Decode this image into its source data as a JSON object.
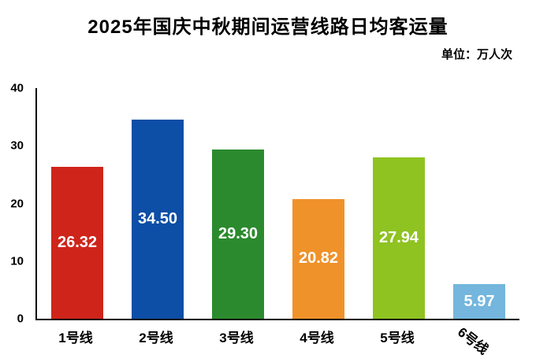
{
  "title": "2025年国庆中秋期间运营线路日均客运量",
  "unit_label": "单位：万人次",
  "chart_data": {
    "type": "bar",
    "title": "2025年国庆中秋期间运营线路日均客运量",
    "subtitle": "单位：万人次",
    "categories": [
      "1号线",
      "2号线",
      "3号线",
      "4号线",
      "5号线",
      "6号线"
    ],
    "values": [
      26.32,
      34.5,
      29.3,
      20.82,
      27.94,
      5.97
    ],
    "value_labels": [
      "26.32",
      "34.50",
      "29.30",
      "20.82",
      "27.94",
      "5.97"
    ],
    "bar_colors": [
      "#cf241a",
      "#0d4ea6",
      "#2b8a2e",
      "#f0922a",
      "#8fc321",
      "#74b6dd"
    ],
    "xlabel": "",
    "ylabel": "",
    "ylim": [
      0,
      40
    ],
    "yticks": [
      0,
      10,
      20,
      30,
      40
    ],
    "grid": false,
    "legend": false,
    "value_label_color": "#ffffff",
    "last_x_label_rotated": true
  }
}
